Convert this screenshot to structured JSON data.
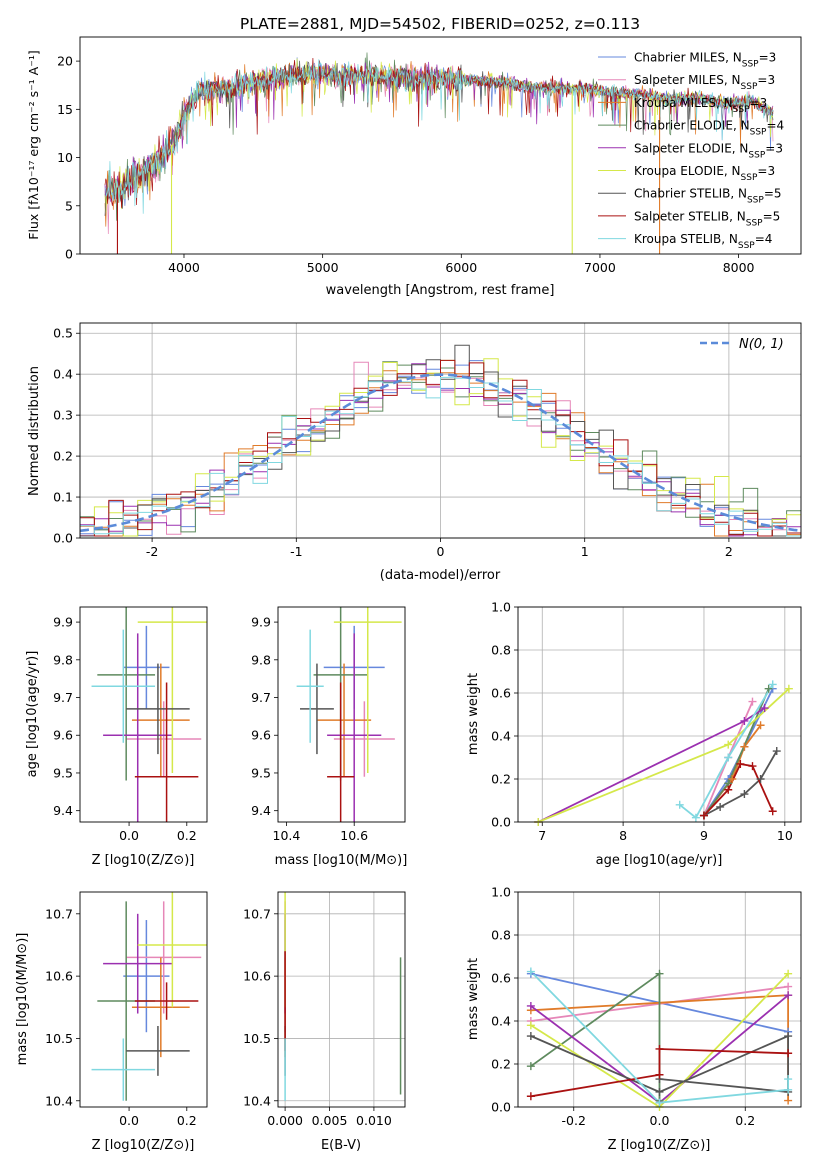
{
  "figure": {
    "title": "PLATE=2881, MJD=54502, FIBERID=0252, z=0.113"
  },
  "colors": {
    "Chabrier MILES": "#6688dd",
    "Salpeter MILES": "#e687b8",
    "Kroupa MILES": "#e07b2a",
    "Chabrier ELODIE": "#5e8a5e",
    "Salpeter ELODIE": "#9b30b0",
    "Kroupa ELODIE": "#d5e84a",
    "Chabrier STELIB": "#555555",
    "Salpeter STELIB": "#aa1111",
    "Kroupa STELIB": "#80d8e0"
  },
  "chart_data": [
    {
      "id": "spectrum",
      "type": "line",
      "title": "PLATE=2881, MJD=54502, FIBERID=0252, z=0.113",
      "xlabel": "wavelength [Angstrom, rest frame]",
      "ylabel": "Flux [fλ10⁻¹⁷ erg cm⁻² s⁻¹ A⁻¹]",
      "xlim": [
        3250,
        8450
      ],
      "ylim": [
        0,
        22.5
      ],
      "xticks": [
        4000,
        5000,
        6000,
        7000,
        8000
      ],
      "yticks": [
        0,
        5,
        10,
        15,
        20
      ],
      "legend_position": "top-right",
      "continuum": [
        [
          3430,
          6.2
        ],
        [
          3600,
          7.5
        ],
        [
          3800,
          9.5
        ],
        [
          3950,
          12
        ],
        [
          4000,
          14.5
        ],
        [
          4100,
          16.8
        ],
        [
          4300,
          17.2
        ],
        [
          4500,
          17.8
        ],
        [
          4700,
          18.4
        ],
        [
          4900,
          18.7
        ],
        [
          5100,
          18.5
        ],
        [
          5300,
          18.6
        ],
        [
          5500,
          18.4
        ],
        [
          5700,
          18.2
        ],
        [
          5900,
          18.3
        ],
        [
          6100,
          18.0
        ],
        [
          6300,
          17.8
        ],
        [
          6500,
          17.3
        ],
        [
          6700,
          17.2
        ],
        [
          6900,
          17.1
        ],
        [
          7100,
          16.7
        ],
        [
          7300,
          16.6
        ],
        [
          7500,
          16.0
        ],
        [
          7700,
          16.2
        ],
        [
          7900,
          15.6
        ],
        [
          8100,
          15.8
        ],
        [
          8250,
          14.5
        ]
      ],
      "series": [
        {
          "name": "Chabrier MILES, N$_{SSP}$=3",
          "label": "Chabrier MILES",
          "nssp": 3
        },
        {
          "name": "Salpeter MILES, N$_{SSP}$=3",
          "label": "Salpeter MILES",
          "nssp": 3
        },
        {
          "name": "Kroupa MILES, N$_{SSP}$=3",
          "label": "Kroupa MILES",
          "nssp": 3
        },
        {
          "name": "Chabrier ELODIE, N$_{SSP}$=4",
          "label": "Chabrier ELODIE",
          "nssp": 4
        },
        {
          "name": "Salpeter ELODIE, N$_{SSP}$=3",
          "label": "Salpeter ELODIE",
          "nssp": 3
        },
        {
          "name": "Kroupa ELODIE, N$_{SSP}$=3",
          "label": "Kroupa ELODIE",
          "nssp": 3
        },
        {
          "name": "Chabrier STELIB, N$_{SSP}$=5",
          "label": "Chabrier STELIB",
          "nssp": 5
        },
        {
          "name": "Salpeter STELIB, N$_{SSP}$=5",
          "label": "Salpeter STELIB",
          "nssp": 5
        },
        {
          "name": "Kroupa STELIB, N$_{SSP}$=4",
          "label": "Kroupa STELIB",
          "nssp": 4
        }
      ],
      "spikes": [
        [
          3520,
          "Salpeter STELIB"
        ],
        [
          3910,
          "Kroupa ELODIE"
        ],
        [
          6800,
          "Kroupa ELODIE"
        ],
        [
          7430,
          "Kroupa MILES"
        ]
      ]
    },
    {
      "id": "residuals",
      "type": "step",
      "xlabel": "(data-model)/error",
      "ylabel": "Normed distribution",
      "xlim": [
        -2.5,
        2.5
      ],
      "ylim": [
        0,
        0.525
      ],
      "xticks": [
        -2,
        -1,
        0,
        1,
        2
      ],
      "yticks": [
        0.0,
        0.1,
        0.2,
        0.3,
        0.4,
        0.5
      ],
      "grid": true,
      "reference": {
        "name": "$\\mathcal{N}(0,1)$",
        "label": "N(0, 1)",
        "color": "#5b8bd9"
      },
      "legend_position": "top-right"
    },
    {
      "id": "age_vs_Z",
      "type": "errorbar",
      "xlabel": "Z [log10(Z/Z⊙)]",
      "ylabel": "age  [log10(age/yr)]",
      "xlim": [
        -0.17,
        0.27
      ],
      "ylim": [
        9.37,
        9.94
      ],
      "xticks": [
        0.0,
        0.2
      ],
      "yticks": [
        9.4,
        9.5,
        9.6,
        9.7,
        9.8,
        9.9
      ],
      "points": [
        {
          "series": "Chabrier MILES",
          "x": 0.06,
          "y": 9.78,
          "xerr": 0.08,
          "yerr": 0.11
        },
        {
          "series": "Salpeter MILES",
          "x": 0.12,
          "y": 9.59,
          "xerr": 0.13,
          "yerr": 0.1
        },
        {
          "series": "Kroupa MILES",
          "x": 0.11,
          "y": 9.64,
          "xerr": 0.1,
          "yerr": 0.15
        },
        {
          "series": "Chabrier ELODIE",
          "x": -0.01,
          "y": 9.76,
          "xerr": 0.1,
          "yerr": 0.28
        },
        {
          "series": "Salpeter ELODIE",
          "x": 0.03,
          "y": 9.6,
          "xerr": 0.12,
          "yerr": 0.27
        },
        {
          "series": "Kroupa ELODIE",
          "x": 0.15,
          "y": 9.9,
          "xerr": 0.12,
          "yerr": 0.4
        },
        {
          "series": "Chabrier STELIB",
          "x": 0.1,
          "y": 9.67,
          "xerr": 0.11,
          "yerr": 0.12
        },
        {
          "series": "Salpeter STELIB",
          "x": 0.13,
          "y": 9.49,
          "xerr": 0.11,
          "yerr": 0.25
        },
        {
          "series": "Kroupa STELIB",
          "x": -0.02,
          "y": 9.73,
          "xerr": 0.11,
          "yerr": 0.15
        }
      ]
    },
    {
      "id": "age_vs_mass",
      "type": "errorbar",
      "xlabel": "mass [log10(M/M⊙)]",
      "ylabel": "",
      "xlim": [
        10.375,
        10.75
      ],
      "ylim": [
        9.37,
        9.94
      ],
      "xticks": [
        10.4,
        10.6
      ],
      "yticks": [
        9.4,
        9.5,
        9.6,
        9.7,
        9.8,
        9.9
      ],
      "points": [
        {
          "series": "Chabrier MILES",
          "x": 10.6,
          "y": 9.78,
          "xerr": 0.09,
          "yerr": 0.11
        },
        {
          "series": "Salpeter MILES",
          "x": 10.63,
          "y": 9.59,
          "xerr": 0.09,
          "yerr": 0.1
        },
        {
          "series": "Kroupa MILES",
          "x": 10.57,
          "y": 9.64,
          "xerr": 0.08,
          "yerr": 0.15
        },
        {
          "series": "Chabrier ELODIE",
          "x": 10.56,
          "y": 9.76,
          "xerr": 0.08,
          "yerr": 0.28
        },
        {
          "series": "Salpeter ELODIE",
          "x": 10.6,
          "y": 9.6,
          "xerr": 0.08,
          "yerr": 0.27
        },
        {
          "series": "Kroupa ELODIE",
          "x": 10.64,
          "y": 9.9,
          "xerr": 0.1,
          "yerr": 0.4
        },
        {
          "series": "Chabrier STELIB",
          "x": 10.49,
          "y": 9.67,
          "xerr": 0.05,
          "yerr": 0.12
        },
        {
          "series": "Salpeter STELIB",
          "x": 10.56,
          "y": 9.49,
          "xerr": 0.04,
          "yerr": 0.25
        },
        {
          "series": "Kroupa STELIB",
          "x": 10.47,
          "y": 9.73,
          "xerr": 0.04,
          "yerr": 0.15
        }
      ]
    },
    {
      "id": "weight_vs_age",
      "type": "line",
      "xlabel": "age  [log10(age/yr)]",
      "ylabel": "mass weight",
      "xlim": [
        6.7,
        10.2
      ],
      "ylim": [
        0,
        1
      ],
      "xticks": [
        7,
        8,
        9,
        10
      ],
      "yticks": [
        0.0,
        0.2,
        0.4,
        0.6,
        0.8,
        1.0
      ],
      "grid": true,
      "series": [
        {
          "series": "Chabrier MILES",
          "points": [
            [
              9.0,
              0.03
            ],
            [
              9.3,
              0.2
            ],
            [
              9.5,
              0.35
            ],
            [
              9.85,
              0.62
            ]
          ]
        },
        {
          "series": "Salpeter MILES",
          "points": [
            [
              9.0,
              0.03
            ],
            [
              9.3,
              0.3
            ],
            [
              9.6,
              0.56
            ]
          ]
        },
        {
          "series": "Kroupa MILES",
          "points": [
            [
              9.0,
              0.03
            ],
            [
              9.35,
              0.2
            ],
            [
              9.5,
              0.35
            ],
            [
              9.7,
              0.45
            ]
          ]
        },
        {
          "series": "Chabrier ELODIE",
          "points": [
            [
              9.0,
              0.03
            ],
            [
              9.3,
              0.18
            ],
            [
              9.8,
              0.62
            ]
          ]
        },
        {
          "series": "Salpeter ELODIE",
          "points": [
            [
              6.95,
              0.0
            ],
            [
              9.5,
              0.47
            ],
            [
              9.75,
              0.53
            ]
          ]
        },
        {
          "series": "Kroupa ELODIE",
          "points": [
            [
              6.95,
              0.0
            ],
            [
              9.3,
              0.36
            ],
            [
              10.05,
              0.62
            ]
          ]
        },
        {
          "series": "Chabrier STELIB",
          "points": [
            [
              9.0,
              0.03
            ],
            [
              9.2,
              0.07
            ],
            [
              9.5,
              0.13
            ],
            [
              9.7,
              0.2
            ],
            [
              9.9,
              0.33
            ]
          ]
        },
        {
          "series": "Salpeter STELIB",
          "points": [
            [
              9.0,
              0.03
            ],
            [
              9.3,
              0.15
            ],
            [
              9.45,
              0.27
            ],
            [
              9.6,
              0.26
            ],
            [
              9.85,
              0.05
            ]
          ]
        },
        {
          "series": "Kroupa STELIB",
          "points": [
            [
              8.7,
              0.08
            ],
            [
              8.9,
              0.02
            ],
            [
              9.3,
              0.3
            ],
            [
              9.85,
              0.64
            ]
          ]
        }
      ]
    },
    {
      "id": "mass_vs_Z",
      "type": "errorbar",
      "xlabel": "Z [log10(Z/Z⊙)]",
      "ylabel": "mass [log10(M/M⊙)]",
      "xlim": [
        -0.17,
        0.27
      ],
      "ylim": [
        10.39,
        10.735
      ],
      "xticks": [
        0.0,
        0.2
      ],
      "yticks": [
        10.4,
        10.5,
        10.6,
        10.7
      ],
      "points": [
        {
          "series": "Chabrier MILES",
          "x": 0.06,
          "y": 10.6,
          "xerr": 0.08,
          "yerr": 0.09
        },
        {
          "series": "Salpeter MILES",
          "x": 0.12,
          "y": 10.63,
          "xerr": 0.13,
          "yerr": 0.09
        },
        {
          "series": "Kroupa MILES",
          "x": 0.11,
          "y": 10.55,
          "xerr": 0.1,
          "yerr": 0.08
        },
        {
          "series": "Chabrier ELODIE",
          "x": -0.01,
          "y": 10.56,
          "xerr": 0.1,
          "yerr": 0.16
        },
        {
          "series": "Salpeter ELODIE",
          "x": 0.03,
          "y": 10.62,
          "xerr": 0.12,
          "yerr": 0.08
        },
        {
          "series": "Kroupa ELODIE",
          "x": 0.15,
          "y": 10.65,
          "xerr": 0.12,
          "yerr": 0.1
        },
        {
          "series": "Chabrier STELIB",
          "x": 0.1,
          "y": 10.48,
          "xerr": 0.11,
          "yerr": 0.04
        },
        {
          "series": "Salpeter STELIB",
          "x": 0.13,
          "y": 10.56,
          "xerr": 0.11,
          "yerr": 0.03
        },
        {
          "series": "Kroupa STELIB",
          "x": -0.02,
          "y": 10.45,
          "xerr": 0.11,
          "yerr": 0.05
        }
      ]
    },
    {
      "id": "mass_vs_ebv",
      "type": "errorbar",
      "xlabel": "E(B-V)",
      "ylabel": "",
      "xlim": [
        -0.0008,
        0.0135
      ],
      "ylim": [
        10.39,
        10.735
      ],
      "xticks": [
        0.0,
        0.005,
        0.01
      ],
      "yticks": [
        10.4,
        10.5,
        10.6,
        10.7
      ],
      "grid": true,
      "points": [
        {
          "series": "Chabrier MILES",
          "x": 0.0,
          "y": 10.6,
          "yerr": 0.09
        },
        {
          "series": "Salpeter MILES",
          "x": 0.0,
          "y": 10.63,
          "yerr": 0.09
        },
        {
          "series": "Kroupa MILES",
          "x": 0.0,
          "y": 10.55,
          "yerr": 0.08
        },
        {
          "series": "Chabrier ELODIE",
          "x": 0.013,
          "y": 10.52,
          "yerr": 0.11
        },
        {
          "series": "Salpeter ELODIE",
          "x": 0.0,
          "y": 10.62,
          "yerr": 0.08
        },
        {
          "series": "Kroupa ELODIE",
          "x": 0.0,
          "y": 10.65,
          "yerr": 0.1
        },
        {
          "series": "Chabrier STELIB",
          "x": 0.0,
          "y": 10.48,
          "yerr": 0.04
        },
        {
          "series": "Salpeter STELIB",
          "x": 0.0,
          "y": 10.56,
          "yerr": 0.08
        },
        {
          "series": "Kroupa STELIB",
          "x": 0.0,
          "y": 10.45,
          "yerr": 0.05
        }
      ]
    },
    {
      "id": "weight_vs_Z",
      "type": "line",
      "xlabel": "Z [log10(Z/Z⊙)]",
      "ylabel": "mass weight",
      "xlim": [
        -0.33,
        0.33
      ],
      "ylim": [
        0,
        1
      ],
      "xticks": [
        -0.2,
        0.0,
        0.2
      ],
      "yticks": [
        0.0,
        0.2,
        0.4,
        0.6,
        0.8,
        1.0
      ],
      "grid": true,
      "series": [
        {
          "series": "Chabrier MILES",
          "points": [
            [
              -0.3,
              0.62
            ],
            [
              0.3,
              0.35
            ]
          ]
        },
        {
          "series": "Salpeter MILES",
          "points": [
            [
              -0.3,
              0.4
            ],
            [
              0.3,
              0.56
            ]
          ]
        },
        {
          "series": "Kroupa MILES",
          "points": [
            [
              -0.3,
              0.45
            ],
            [
              0.3,
              0.52
            ],
            [
              0.3,
              0.03
            ]
          ]
        },
        {
          "series": "Chabrier ELODIE",
          "points": [
            [
              -0.3,
              0.19
            ],
            [
              0.0,
              0.62
            ],
            [
              0.0,
              0.03
            ]
          ]
        },
        {
          "series": "Salpeter ELODIE",
          "points": [
            [
              -0.3,
              0.47
            ],
            [
              0.0,
              0.02
            ],
            [
              0.3,
              0.52
            ]
          ]
        },
        {
          "series": "Kroupa ELODIE",
          "points": [
            [
              -0.3,
              0.38
            ],
            [
              0.0,
              0.0
            ],
            [
              0.3,
              0.62
            ]
          ]
        },
        {
          "series": "Chabrier STELIB",
          "points": [
            [
              -0.3,
              0.33
            ],
            [
              0.0,
              0.07
            ],
            [
              0.3,
              0.33
            ],
            [
              0.3,
              0.07
            ],
            [
              0.0,
              0.13
            ]
          ]
        },
        {
          "series": "Salpeter STELIB",
          "points": [
            [
              -0.3,
              0.05
            ],
            [
              0.0,
              0.15
            ],
            [
              0.0,
              0.27
            ],
            [
              0.3,
              0.25
            ]
          ]
        },
        {
          "series": "Kroupa STELIB",
          "points": [
            [
              -0.3,
              0.63
            ],
            [
              0.0,
              0.02
            ],
            [
              0.3,
              0.08
            ],
            [
              0.3,
              0.13
            ]
          ]
        }
      ]
    }
  ]
}
